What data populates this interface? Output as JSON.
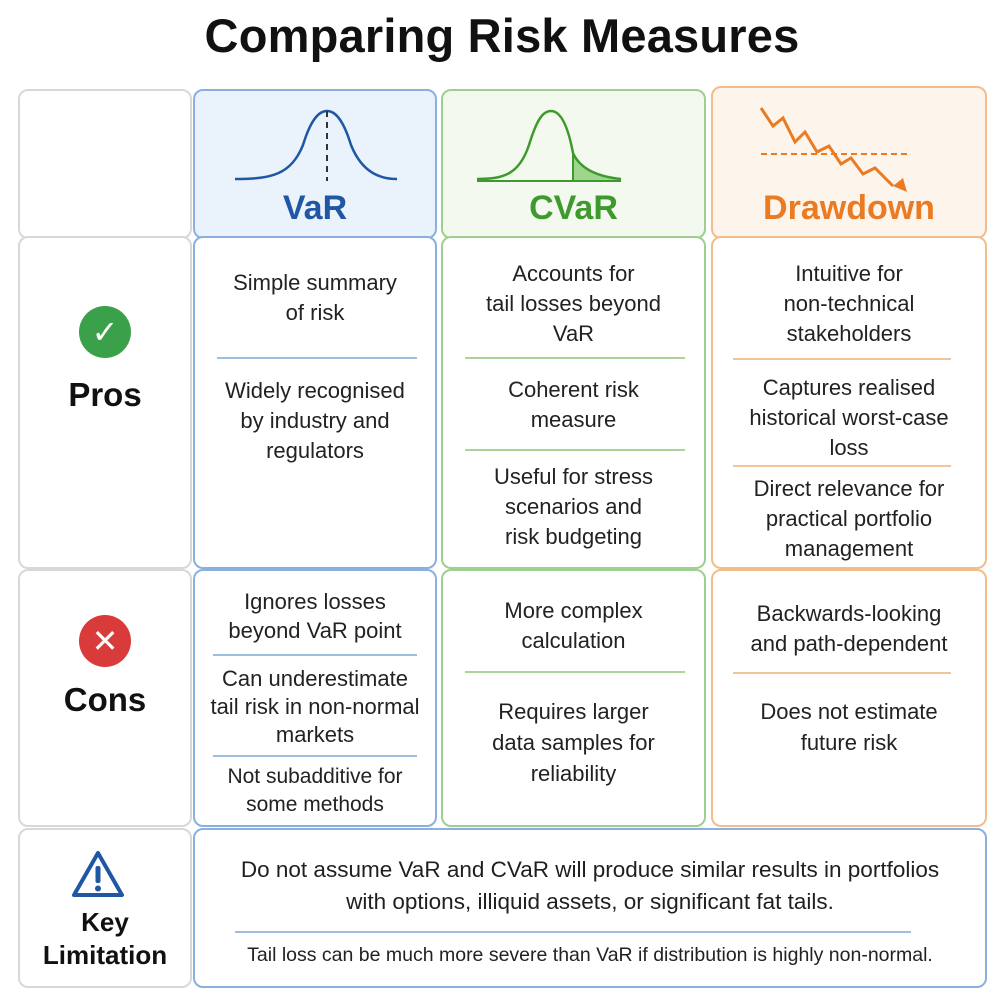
{
  "title": "Comparing Risk Measures",
  "columns": {
    "var": {
      "label": "VaR",
      "icon": "bell-curve-icon",
      "color": "#1f57a4"
    },
    "cvar": {
      "label": "CVaR",
      "icon": "bell-curve-tail-icon",
      "color": "#3f9a2e"
    },
    "drawdown": {
      "label": "Drawdown",
      "icon": "declining-line-icon",
      "color": "#ea7b23"
    }
  },
  "rows": {
    "pros": {
      "label": "Pros",
      "icon": "check-circle-icon",
      "color": "#3aa14a"
    },
    "cons": {
      "label": "Cons",
      "icon": "x-circle-icon",
      "color": "#d93a3a"
    },
    "key": {
      "label_line1": "Key",
      "label_line2": "Limitation",
      "icon": "warning-triangle-icon",
      "color": "#1f57a4"
    }
  },
  "pros": {
    "var": [
      [
        "Simple summary",
        "of risk"
      ],
      [
        "Widely recognised",
        "by industry and",
        "regulators"
      ]
    ],
    "cvar": [
      [
        "Accounts for",
        "tail losses beyond",
        "VaR"
      ],
      [
        "Coherent risk",
        "measure"
      ],
      [
        "Useful for stress",
        "scenarios and",
        "risk budgeting"
      ]
    ],
    "drawdown": [
      [
        "Intuitive for",
        "non-technical",
        "stakeholders"
      ],
      [
        "Captures realised",
        "historical worst-case",
        "loss"
      ],
      [
        "Direct relevance for",
        "practical portfolio",
        "management"
      ]
    ]
  },
  "cons": {
    "var": [
      [
        "Ignores losses",
        "beyond VaR point"
      ],
      [
        "Can underestimate",
        "tail risk in non-normal",
        "markets"
      ],
      [
        "Not subadditive for",
        "some methods"
      ]
    ],
    "cvar": [
      [
        "More complex",
        "calculation"
      ],
      [
        "Requires larger",
        "data samples for",
        "reliability"
      ]
    ],
    "drawdown": [
      [
        "Backwards-looking",
        "and path-dependent"
      ],
      [
        "Does not estimate",
        "future risk"
      ]
    ]
  },
  "key_limitation": {
    "main_line1": "Do not assume VaR and CVaR will produce similar results in portfolios",
    "main_line2": "with options, illiquid assets, or significant fat tails.",
    "note": "Tail loss can be much more severe than VaR if distribution is highly non-normal."
  }
}
